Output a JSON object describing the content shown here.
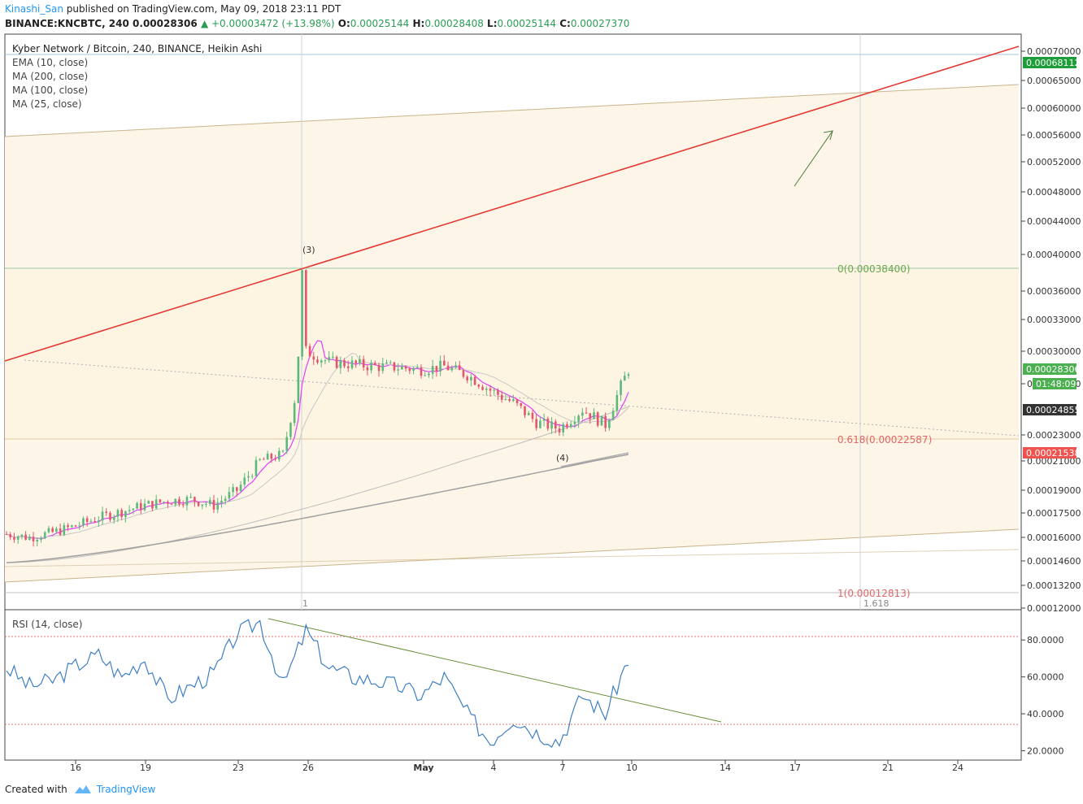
{
  "header": {
    "author": "Kinashi_San",
    "published_text": "published on TradingView.com, May 09, 2018 23:11 PDT",
    "symbol": "BINANCE:KNCBTC, 240",
    "last": "0.00028306",
    "change": "▲ +0.00003472 (+13.98%)",
    "o_label": "O:",
    "o": "0.00025144",
    "h_label": "H:",
    "h": "0.00028408",
    "l_label": "L:",
    "l": "0.00025144",
    "c_label": "C:",
    "c": "0.00027370"
  },
  "legend": {
    "title": "Kyber Network / Bitcoin, 240, BINANCE, Heikin Ashi",
    "studies": [
      "EMA (10, close)",
      "MA (200, close)",
      "MA (100, close)",
      "MA (25, close)"
    ]
  },
  "price_axis": {
    "ticks": [
      "0.00070000",
      "0.00065000",
      "0.00060000",
      "0.00056000",
      "0.00052000",
      "0.00048000",
      "0.00044000",
      "0.00040000",
      "0.00036000",
      "0.00033000",
      "0.00030000",
      "0.00027000",
      "0.00023000",
      "0.00021000",
      "0.00019000",
      "0.00017500",
      "0.00016000",
      "0.00014600",
      "0.00013200",
      "0.00012000"
    ],
    "tick_values": [
      0.0007,
      0.00065,
      0.0006,
      0.00056,
      0.00052,
      0.00048,
      0.00044,
      0.0004,
      0.00036,
      0.00033,
      0.0003,
      0.00027,
      0.00023,
      0.00021,
      0.00019,
      0.000175,
      0.00016,
      0.000146,
      0.000132,
      0.00012
    ],
    "badges": [
      {
        "text": "0.00068112",
        "color": "#1e9e3a"
      },
      {
        "text": "0.00028306",
        "color": "#4caf50"
      },
      {
        "text": "01:48:09",
        "color": "#4caf50"
      },
      {
        "text": "0.00024855",
        "color": "#333333"
      },
      {
        "text": "0.00021538",
        "color": "#ef5350"
      }
    ]
  },
  "annotations": {
    "wave3": "(3)",
    "wave4": "(4)",
    "fib0": "0(0.00038400)",
    "fib618": "0.618(0.00022587)",
    "fib1": "1(0.00012813)",
    "vline1": "1",
    "vline2": "1.618"
  },
  "rsi": {
    "title": "RSI (14, close)",
    "ticks": [
      "80.0000",
      "60.0000",
      "40.0000",
      "20.0000"
    ],
    "tick_values": [
      80,
      60,
      40,
      20
    ],
    "upper_band": 80,
    "lower_band": 35
  },
  "time_axis": {
    "labels": [
      "16",
      "19",
      "23",
      "26",
      "May",
      "4",
      "7",
      "10",
      "14",
      "17",
      "21",
      "24"
    ]
  },
  "footer": {
    "created_with": "Created with",
    "brand": "TradingView"
  },
  "chart_data": {
    "type": "line",
    "title": "Kyber Network / Bitcoin, 240, BINANCE, Heikin Ashi",
    "price_ylim": [
      0.000118,
      0.00072
    ],
    "rsi_ylim": [
      18,
      92
    ],
    "price_close_by_day": {
      "x": [
        "13",
        "14",
        "15",
        "16",
        "17",
        "18",
        "19",
        "20",
        "21",
        "22",
        "23",
        "24",
        "25",
        "26",
        "27",
        "28",
        "29",
        "30",
        "May 1",
        "2",
        "3",
        "4",
        "5",
        "6",
        "7",
        "8",
        "9",
        "10"
      ],
      "values": [
        0.000162,
        0.00016,
        0.000163,
        0.000167,
        0.000172,
        0.000176,
        0.00018,
        0.000183,
        0.000184,
        0.00018,
        0.00019,
        0.00021,
        0.000215,
        0.0003,
        0.00029,
        0.000288,
        0.000286,
        0.000285,
        0.000283,
        0.000286,
        0.000278,
        0.000265,
        0.000255,
        0.00024,
        0.000235,
        0.00025,
        0.000238,
        0.000283
      ]
    },
    "rsi_by_day": {
      "x": [
        "13",
        "14",
        "15",
        "16",
        "17",
        "18",
        "19",
        "20",
        "21",
        "22",
        "23",
        "24",
        "25",
        "26",
        "27",
        "28",
        "29",
        "30",
        "May 1",
        "2",
        "3",
        "4",
        "5",
        "6",
        "7",
        "8",
        "9",
        "10"
      ],
      "values": [
        65,
        55,
        58,
        66,
        72,
        60,
        70,
        48,
        55,
        62,
        83,
        90,
        55,
        85,
        65,
        60,
        58,
        55,
        50,
        60,
        40,
        25,
        38,
        30,
        25,
        50,
        40,
        70
      ]
    },
    "ema10_last": 0.000258,
    "ma25_last": 0.000262,
    "ma100_last": 0.000252,
    "ma200_last": 0.000215
  }
}
